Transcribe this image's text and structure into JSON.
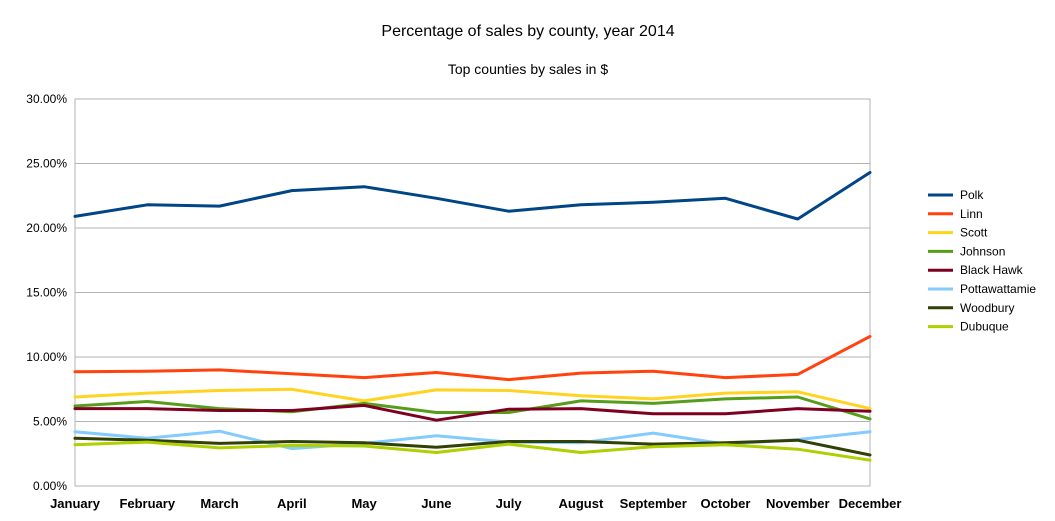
{
  "chart_data": {
    "type": "line",
    "title": "Percentage of sales by county, year 2014",
    "subtitle": "Top counties by sales in $",
    "categories": [
      "January",
      "February",
      "March",
      "April",
      "May",
      "June",
      "July",
      "August",
      "September",
      "October",
      "November",
      "December"
    ],
    "ylim": [
      0,
      30
    ],
    "yticks": [
      0,
      5,
      10,
      15,
      20,
      25,
      30
    ],
    "ytick_labels": [
      "0.00%",
      "5.00%",
      "10.00%",
      "15.00%",
      "20.00%",
      "25.00%",
      "30.00%"
    ],
    "grid": true,
    "legend_position": "right",
    "series": [
      {
        "name": "Polk",
        "color": "#004586",
        "values": [
          20.9,
          21.8,
          21.7,
          22.9,
          23.2,
          22.3,
          21.3,
          21.8,
          22.0,
          22.3,
          20.7,
          24.3
        ]
      },
      {
        "name": "Linn",
        "color": "#ff420e",
        "values": [
          8.85,
          8.9,
          9.0,
          8.7,
          8.4,
          8.8,
          8.25,
          8.75,
          8.9,
          8.4,
          8.65,
          11.6
        ]
      },
      {
        "name": "Scott",
        "color": "#ffd320",
        "values": [
          6.9,
          7.2,
          7.4,
          7.5,
          6.6,
          7.45,
          7.4,
          7.0,
          6.75,
          7.2,
          7.3,
          6.0
        ]
      },
      {
        "name": "Johnson",
        "color": "#579d1c",
        "values": [
          6.2,
          6.55,
          6.0,
          5.75,
          6.4,
          5.7,
          5.7,
          6.6,
          6.4,
          6.75,
          6.9,
          5.2
        ]
      },
      {
        "name": "Black Hawk",
        "color": "#7e0021",
        "values": [
          6.0,
          6.0,
          5.85,
          5.85,
          6.25,
          5.1,
          5.95,
          6.0,
          5.6,
          5.6,
          6.0,
          5.8
        ]
      },
      {
        "name": "Pottawattamie",
        "color": "#83caff",
        "values": [
          4.2,
          3.7,
          4.25,
          2.9,
          3.3,
          3.9,
          3.4,
          3.35,
          4.1,
          3.25,
          3.6,
          4.2
        ]
      },
      {
        "name": "Woodbury",
        "color": "#314004",
        "values": [
          3.7,
          3.55,
          3.3,
          3.45,
          3.35,
          3.0,
          3.45,
          3.45,
          3.25,
          3.35,
          3.55,
          2.4
        ]
      },
      {
        "name": "Dubuque",
        "color": "#aecf00",
        "values": [
          3.2,
          3.4,
          2.95,
          3.15,
          3.1,
          2.6,
          3.25,
          2.6,
          3.05,
          3.2,
          2.85,
          2.0
        ]
      }
    ]
  }
}
